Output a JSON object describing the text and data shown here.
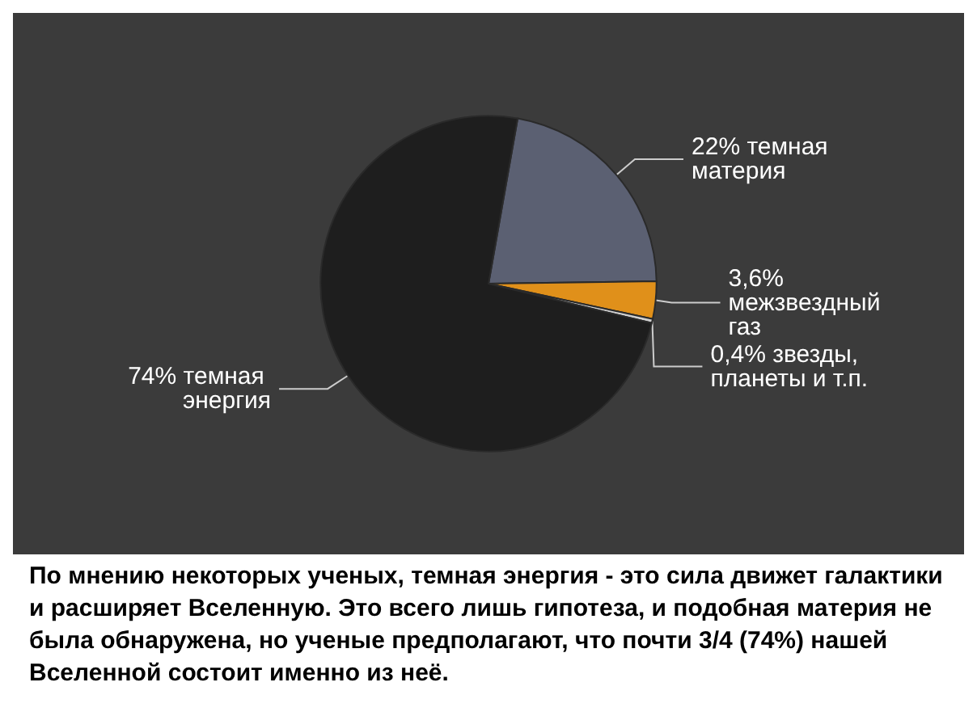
{
  "chart_data": {
    "type": "pie",
    "categories": [
      "темная материя",
      "межзвездный газ",
      "звезды, планеты и т.п.",
      "темная энергия"
    ],
    "values": [
      22,
      3.6,
      0.4,
      74
    ],
    "value_labels": [
      "22%",
      "3,6%",
      "0,4%",
      "74%"
    ],
    "colors": [
      "#5b6072",
      "#e0901a",
      "#d0d0d0",
      "#1e1e1e"
    ],
    "legend": false,
    "annotations": [
      "По мнению некоторых ученых, темная энергия - это сила движет галактики и расширяет Вселенную. Это всего лишь гипотеза, и подобная материя не была обнаружена, но ученые предполагают, что почти 3/4 (74%) нашей Вселенной состоит именно из неё."
    ]
  }
}
